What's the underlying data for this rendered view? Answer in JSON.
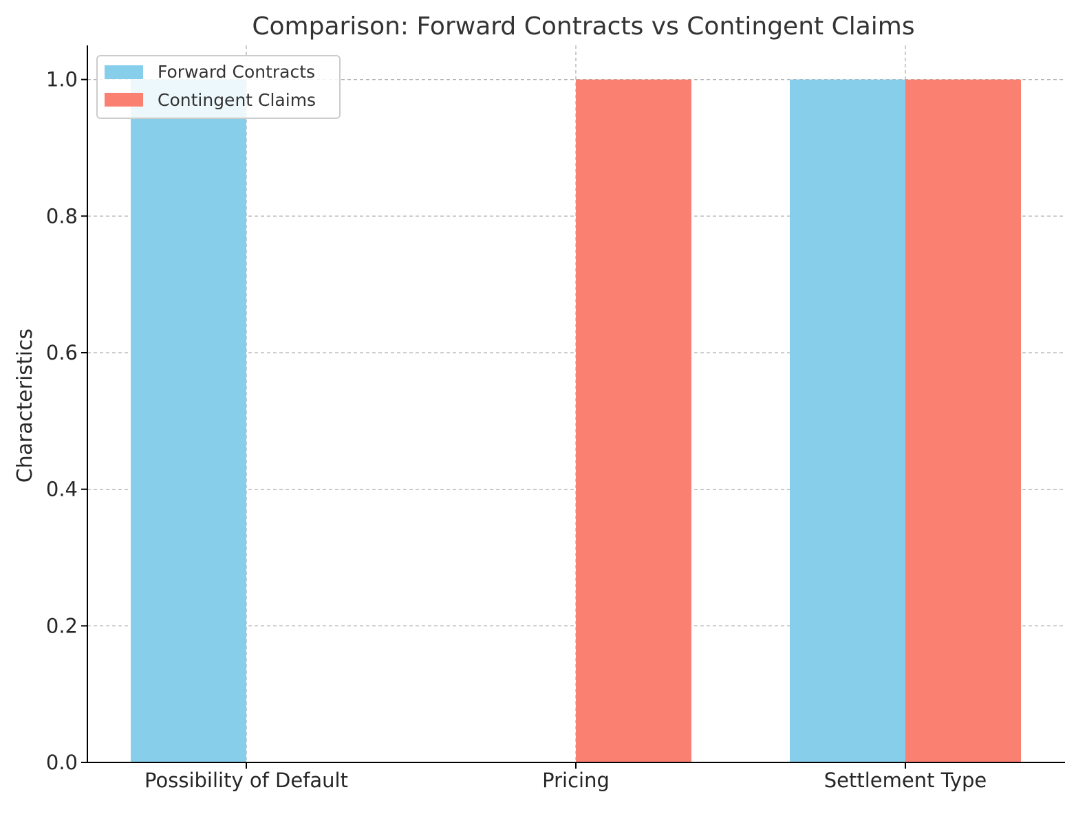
{
  "chart_data": {
    "type": "bar",
    "title": "Comparison: Forward Contracts vs Contingent Claims",
    "xlabel": "",
    "ylabel": "Characteristics",
    "categories": [
      "Possibility of Default",
      "Pricing",
      "Settlement Type"
    ],
    "series": [
      {
        "name": "Forward Contracts",
        "color": "#87CEEB",
        "values": [
          1,
          0,
          1
        ]
      },
      {
        "name": "Contingent Claims",
        "color": "#FA8072",
        "values": [
          0,
          1,
          1
        ]
      }
    ],
    "ylim": [
      0,
      1.05
    ],
    "yticks": [
      "0.0",
      "0.2",
      "0.4",
      "0.6",
      "0.8",
      "1.0"
    ],
    "grid": true,
    "legend_position": "top-left"
  }
}
